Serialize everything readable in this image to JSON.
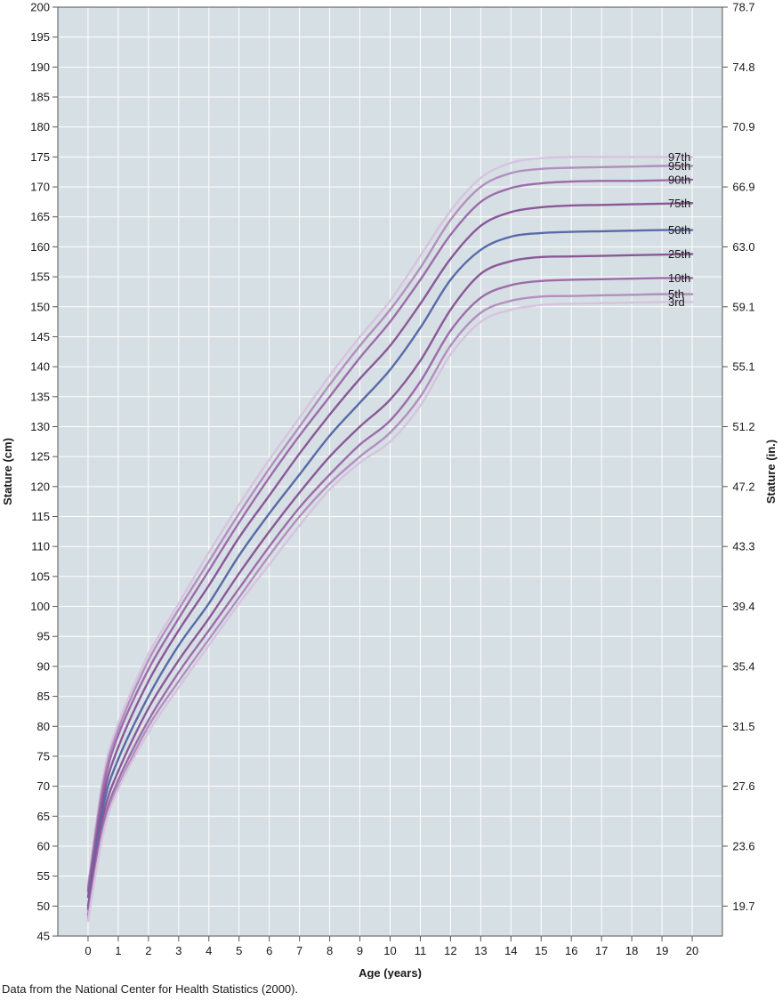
{
  "chart_data": {
    "type": "line",
    "xlabel": "Age (years)",
    "ylabel": "Stature (cm)",
    "ylabel_right": "Stature (in.)",
    "xlim": [
      -1,
      21
    ],
    "ylim": [
      45,
      200
    ],
    "x_ticks": [
      0,
      1,
      2,
      3,
      4,
      5,
      6,
      7,
      8,
      9,
      10,
      11,
      12,
      13,
      14,
      15,
      16,
      17,
      18,
      19,
      20
    ],
    "y_ticks": [
      45,
      50,
      55,
      60,
      65,
      70,
      75,
      80,
      85,
      90,
      95,
      100,
      105,
      110,
      115,
      120,
      125,
      130,
      135,
      140,
      145,
      150,
      155,
      160,
      165,
      170,
      175,
      180,
      185,
      190,
      195,
      200
    ],
    "y_ticks_right": [
      {
        "cm": 50,
        "label": "19.7"
      },
      {
        "cm": 60,
        "label": "23.6"
      },
      {
        "cm": 70,
        "label": "27.6"
      },
      {
        "cm": 80,
        "label": "31.5"
      },
      {
        "cm": 90,
        "label": "35.4"
      },
      {
        "cm": 100,
        "label": "39.4"
      },
      {
        "cm": 110,
        "label": "43.3"
      },
      {
        "cm": 120,
        "label": "47.2"
      },
      {
        "cm": 130,
        "label": "51.2"
      },
      {
        "cm": 140,
        "label": "55.1"
      },
      {
        "cm": 150,
        "label": "59.1"
      },
      {
        "cm": 160,
        "label": "63.0"
      },
      {
        "cm": 170,
        "label": "66.9"
      },
      {
        "cm": 180,
        "label": "70.9"
      },
      {
        "cm": 190,
        "label": "74.8"
      },
      {
        "cm": 200,
        "label": "78.7"
      }
    ],
    "grid": true,
    "x": [
      0,
      0.5,
      1,
      2,
      3,
      4,
      5,
      6,
      7,
      8,
      9,
      10,
      11,
      12,
      13,
      14,
      15,
      16,
      17,
      18,
      19,
      20
    ],
    "series": [
      {
        "name": "97th",
        "color": "#d7c3df",
        "values": [
          53.5,
          71.5,
          80.5,
          92.0,
          100.5,
          109.0,
          117.0,
          124.5,
          131.5,
          138.5,
          145.0,
          151.0,
          158.5,
          166.0,
          171.5,
          174.0,
          174.8,
          175.0,
          175.0,
          175.0,
          175.0,
          175.0
        ]
      },
      {
        "name": "95th",
        "color": "#b38fbf",
        "values": [
          53.0,
          70.5,
          79.5,
          91.0,
          99.5,
          107.5,
          115.5,
          123.0,
          130.0,
          137.0,
          143.5,
          149.5,
          156.5,
          164.5,
          170.0,
          172.3,
          173.0,
          173.2,
          173.3,
          173.4,
          173.5,
          173.5
        ]
      },
      {
        "name": "90th",
        "color": "#9d6cab",
        "values": [
          52.5,
          69.5,
          78.5,
          89.5,
          98.0,
          106.0,
          114.0,
          121.5,
          128.5,
          135.0,
          141.5,
          147.5,
          154.5,
          162.0,
          167.5,
          169.8,
          170.6,
          170.9,
          171.0,
          171.0,
          171.1,
          171.2
        ]
      },
      {
        "name": "75th",
        "color": "#8a5898",
        "values": [
          51.5,
          68.0,
          76.5,
          87.5,
          96.0,
          103.5,
          111.5,
          118.5,
          125.5,
          132.0,
          138.0,
          143.5,
          150.5,
          158.0,
          163.5,
          165.8,
          166.6,
          166.9,
          167.0,
          167.1,
          167.2,
          167.3
        ]
      },
      {
        "name": "50th",
        "color": "#5a6aa8",
        "values": [
          50.0,
          66.5,
          74.5,
          85.0,
          93.5,
          100.5,
          108.5,
          115.5,
          122.0,
          128.5,
          134.0,
          139.5,
          146.5,
          154.5,
          159.5,
          161.7,
          162.3,
          162.5,
          162.6,
          162.7,
          162.8,
          162.8
        ]
      },
      {
        "name": "25th",
        "color": "#8a5898",
        "values": [
          49.5,
          65.0,
          72.5,
          83.0,
          91.0,
          98.0,
          105.5,
          112.5,
          119.0,
          125.0,
          130.0,
          134.5,
          141.0,
          149.5,
          155.5,
          157.6,
          158.3,
          158.4,
          158.5,
          158.6,
          158.7,
          158.8
        ]
      },
      {
        "name": "10th",
        "color": "#9d6cab",
        "values": [
          48.5,
          63.5,
          71.0,
          81.0,
          89.0,
          96.0,
          103.0,
          110.0,
          116.5,
          122.0,
          127.0,
          131.0,
          137.5,
          146.0,
          151.5,
          153.6,
          154.3,
          154.5,
          154.6,
          154.7,
          154.8,
          154.8
        ]
      },
      {
        "name": "5th",
        "color": "#b38fbf",
        "values": [
          48.0,
          62.5,
          70.0,
          80.0,
          87.5,
          94.5,
          101.5,
          108.5,
          115.0,
          120.5,
          125.0,
          129.0,
          135.0,
          143.5,
          149.0,
          151.0,
          151.7,
          151.8,
          151.9,
          152.0,
          152.1,
          152.1
        ]
      },
      {
        "name": "3rd",
        "color": "#d7c3df",
        "values": [
          47.5,
          62.0,
          69.5,
          79.0,
          86.5,
          93.5,
          100.5,
          107.0,
          113.5,
          119.5,
          124.0,
          127.5,
          133.5,
          142.0,
          147.5,
          149.5,
          150.3,
          150.5,
          150.6,
          150.7,
          150.8,
          150.8
        ]
      }
    ]
  },
  "source_note": "Data from the National Center for Health Statistics (2000)."
}
